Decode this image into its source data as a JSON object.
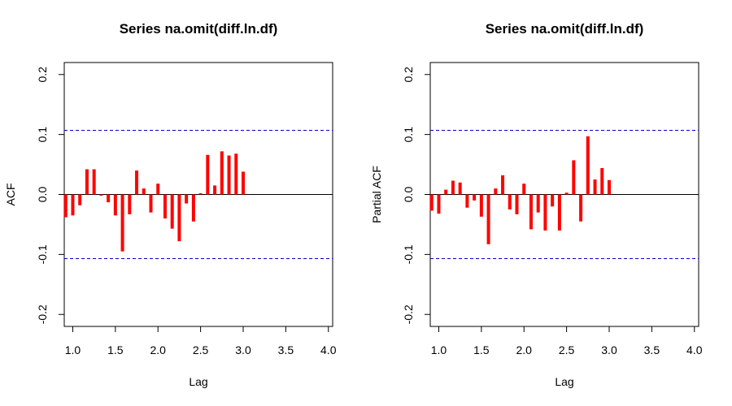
{
  "chart_data": [
    {
      "type": "bar",
      "subtype": "acf",
      "title": "Series  na.omit(diff.ln.df)",
      "xlabel": "Lag",
      "ylabel": "ACF",
      "xlim": [
        0.9,
        4.05
      ],
      "ylim": [
        -0.22,
        0.22
      ],
      "xticks": [
        1.0,
        1.5,
        2.0,
        2.5,
        3.0,
        3.5,
        4.0
      ],
      "xtick_labels": [
        "1.0",
        "1.5",
        "2.0",
        "2.5",
        "3.0",
        "3.5",
        "4.0"
      ],
      "yticks": [
        -0.2,
        -0.1,
        0.0,
        0.1,
        0.2
      ],
      "ytick_labels": [
        "-0.2",
        "-0.1",
        "0.0",
        "0.1",
        "0.2"
      ],
      "confidence_limits": [
        0.107,
        -0.107
      ],
      "bar_color": "#ff0000",
      "ci_color": "#0000cc",
      "lags": [
        0.9167,
        1.0,
        1.0833,
        1.1667,
        1.25,
        1.3333,
        1.4167,
        1.5,
        1.5833,
        1.6667,
        1.75,
        1.8333,
        1.9167,
        2.0,
        2.0833,
        2.1667,
        2.25,
        2.3333,
        2.4167,
        2.5,
        2.5833,
        2.6667,
        2.75,
        2.8333,
        2.9167,
        3.0
      ],
      "values": [
        -0.038,
        -0.035,
        -0.018,
        0.042,
        0.042,
        -0.002,
        -0.013,
        -0.035,
        -0.095,
        -0.033,
        0.04,
        0.01,
        -0.03,
        0.018,
        -0.04,
        -0.057,
        -0.078,
        -0.015,
        -0.045,
        0.002,
        0.066,
        0.015,
        0.072,
        0.065,
        0.068,
        0.038
      ]
    },
    {
      "type": "bar",
      "subtype": "pacf",
      "title": "Series  na.omit(diff.ln.df)",
      "xlabel": "Lag",
      "ylabel": "Partial ACF",
      "xlim": [
        0.9,
        4.05
      ],
      "ylim": [
        -0.22,
        0.22
      ],
      "xticks": [
        1.0,
        1.5,
        2.0,
        2.5,
        3.0,
        3.5,
        4.0
      ],
      "xtick_labels": [
        "1.0",
        "1.5",
        "2.0",
        "2.5",
        "3.0",
        "3.5",
        "4.0"
      ],
      "yticks": [
        -0.2,
        -0.1,
        0.0,
        0.1,
        0.2
      ],
      "ytick_labels": [
        "-0.2",
        "-0.1",
        "0.0",
        "0.1",
        "0.2"
      ],
      "confidence_limits": [
        0.107,
        -0.107
      ],
      "bar_color": "#ff0000",
      "ci_color": "#0000cc",
      "lags": [
        0.9167,
        1.0,
        1.0833,
        1.1667,
        1.25,
        1.3333,
        1.4167,
        1.5,
        1.5833,
        1.6667,
        1.75,
        1.8333,
        1.9167,
        2.0,
        2.0833,
        2.1667,
        2.25,
        2.3333,
        2.4167,
        2.5,
        2.5833,
        2.6667,
        2.75,
        2.8333,
        2.9167,
        3.0
      ],
      "values": [
        -0.027,
        -0.032,
        0.008,
        0.023,
        0.02,
        -0.022,
        -0.01,
        -0.037,
        -0.083,
        0.01,
        0.032,
        -0.025,
        -0.033,
        0.018,
        -0.058,
        -0.03,
        -0.06,
        -0.02,
        -0.06,
        0.003,
        0.057,
        -0.045,
        0.097,
        0.025,
        0.044,
        0.024
      ]
    }
  ]
}
